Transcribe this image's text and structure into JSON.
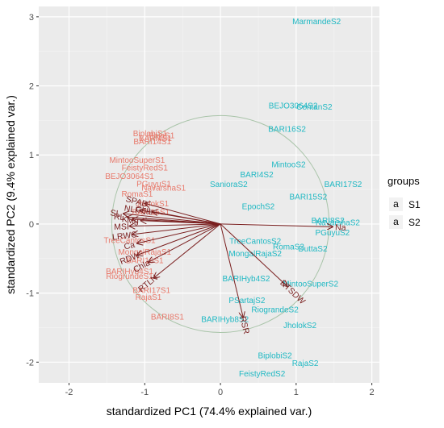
{
  "chart_data": {
    "type": "scatter",
    "xlabel": "standardized PC1 (74.4% explained var.)",
    "ylabel": "standardized PC2 (9.4% explained var.)",
    "xlim": [
      -2.4,
      2.1
    ],
    "ylim": [
      -2.3,
      3.15
    ],
    "xticks": [
      -2,
      -1,
      0,
      1,
      2
    ],
    "yticks": [
      -2,
      -1,
      0,
      1,
      2,
      3
    ],
    "grid": true,
    "background": "#ebebeb",
    "legend": {
      "title": "groups",
      "placement": "right",
      "entries": [
        {
          "symbol": "a",
          "label": "S1",
          "color": "#e8796b"
        },
        {
          "symbol": "a",
          "label": "S2",
          "color": "#1fb8c3"
        }
      ]
    },
    "circle": {
      "cx": 0,
      "cy": 0,
      "r": 1.5,
      "color": "#a9c4a9"
    },
    "series": [
      {
        "name": "S1",
        "color": "#e8796b",
        "points": [
          {
            "label": "BiplobiS1",
            "x": -0.93,
            "y": 1.32
          },
          {
            "label": "BARI4S1",
            "x": -0.86,
            "y": 1.25
          },
          {
            "label": "RajaS1",
            "x": -0.78,
            "y": 1.29
          },
          {
            "label": "BARI14S1",
            "x": -0.9,
            "y": 1.2
          },
          {
            "label": "MintooSuperS1",
            "x": -1.1,
            "y": 0.93
          },
          {
            "label": "FeistyRedS1",
            "x": -1.0,
            "y": 0.82
          },
          {
            "label": "BEJO3064S1",
            "x": -1.2,
            "y": 0.7
          },
          {
            "label": "PGuyuS1",
            "x": -0.88,
            "y": 0.59
          },
          {
            "label": "NavarshaS1",
            "x": -0.75,
            "y": 0.53
          },
          {
            "label": "RomaS1",
            "x": -1.1,
            "y": 0.44
          },
          {
            "label": "JholokS1",
            "x": -0.9,
            "y": 0.3
          },
          {
            "label": "BARI15S1",
            "x": -0.92,
            "y": 0.18
          },
          {
            "label": "TreeCantosS1",
            "x": -1.2,
            "y": -0.23
          },
          {
            "label": "MongalRajaS1",
            "x": -1.0,
            "y": -0.4
          },
          {
            "label": "BARI16S1",
            "x": -1.0,
            "y": -0.52
          },
          {
            "label": "BARIHyb4S1",
            "x": -1.2,
            "y": -0.68
          },
          {
            "label": "RiogrundeS1",
            "x": -1.2,
            "y": -0.75
          },
          {
            "label": "BARI17S1",
            "x": -0.91,
            "y": -0.95
          },
          {
            "label": "RajaS1",
            "x": -0.95,
            "y": -1.05
          },
          {
            "label": "BARI8S1",
            "x": -0.7,
            "y": -1.34
          }
        ]
      },
      {
        "name": "S2",
        "color": "#1fb8c3",
        "points": [
          {
            "label": "MarmandeS2",
            "x": 1.27,
            "y": 2.94
          },
          {
            "label": "BEJO3064S2",
            "x": 0.96,
            "y": 1.72
          },
          {
            "label": "CentanS2",
            "x": 1.24,
            "y": 1.7
          },
          {
            "label": "BARI16S2",
            "x": 0.88,
            "y": 1.38
          },
          {
            "label": "MintooS2",
            "x": 0.9,
            "y": 0.87
          },
          {
            "label": "BARI4S2",
            "x": 0.48,
            "y": 0.72
          },
          {
            "label": "BARI17S2",
            "x": 1.62,
            "y": 0.58
          },
          {
            "label": "SanioraS2",
            "x": 0.11,
            "y": 0.58
          },
          {
            "label": "BARI15S2",
            "x": 1.16,
            "y": 0.4
          },
          {
            "label": "EpochS2",
            "x": 0.5,
            "y": 0.26
          },
          {
            "label": "BARI8S2",
            "x": 1.42,
            "y": 0.06
          },
          {
            "label": "NavarshaS2",
            "x": 1.55,
            "y": 0.03
          },
          {
            "label": "PGuyuS2",
            "x": 1.48,
            "y": -0.12
          },
          {
            "label": "TreeCantosS2",
            "x": 0.46,
            "y": -0.24
          },
          {
            "label": "RomaS2",
            "x": 0.9,
            "y": -0.32
          },
          {
            "label": "DuttaS2",
            "x": 1.22,
            "y": -0.35
          },
          {
            "label": "MongalRajaS2",
            "x": 0.46,
            "y": -0.42
          },
          {
            "label": "BARIHyb4S2",
            "x": 0.34,
            "y": -0.78
          },
          {
            "label": "MintooSuperS2",
            "x": 1.19,
            "y": -0.86
          },
          {
            "label": "PSartajS2",
            "x": 0.35,
            "y": -1.1
          },
          {
            "label": "RiograndeS2",
            "x": 0.72,
            "y": -1.23
          },
          {
            "label": "BARIHyb8S2",
            "x": 0.06,
            "y": -1.37
          },
          {
            "label": "JholokS2",
            "x": 1.05,
            "y": -1.46
          },
          {
            "label": "BiplobiS2",
            "x": 0.72,
            "y": -1.9
          },
          {
            "label": "RajaS2",
            "x": 1.12,
            "y": -2.01
          },
          {
            "label": "FeistyRedS2",
            "x": 0.55,
            "y": -2.16
          }
        ]
      }
    ],
    "variables": [
      {
        "label": "SPAD",
        "x": -1.0,
        "y": 0.3
      },
      {
        "label": "NLF",
        "x": -1.06,
        "y": 0.2
      },
      {
        "label": "Chlb",
        "x": -0.9,
        "y": 0.18
      },
      {
        "label": "SL",
        "x": -1.28,
        "y": 0.15
      },
      {
        "label": "RL",
        "x": -1.23,
        "y": 0.1
      },
      {
        "label": "K",
        "x": -1.16,
        "y": 0.07
      },
      {
        "label": "Mg",
        "x": -1.05,
        "y": 0.05
      },
      {
        "label": "MSI",
        "x": -1.2,
        "y": -0.03
      },
      {
        "label": "LRWC",
        "x": -1.16,
        "y": -0.15
      },
      {
        "label": "Ca",
        "x": -1.1,
        "y": -0.28
      },
      {
        "label": "RDW",
        "x": -1.1,
        "y": -0.45
      },
      {
        "label": "Chla",
        "x": -0.95,
        "y": -0.55
      },
      {
        "label": "RTLN",
        "x": -0.88,
        "y": -0.78
      },
      {
        "label": "Na",
        "x": 1.48,
        "y": -0.04
      },
      {
        "label": "RTSDW",
        "x": 0.88,
        "y": -0.9
      },
      {
        "label": "RSR",
        "x": 0.3,
        "y": -1.35
      }
    ]
  }
}
